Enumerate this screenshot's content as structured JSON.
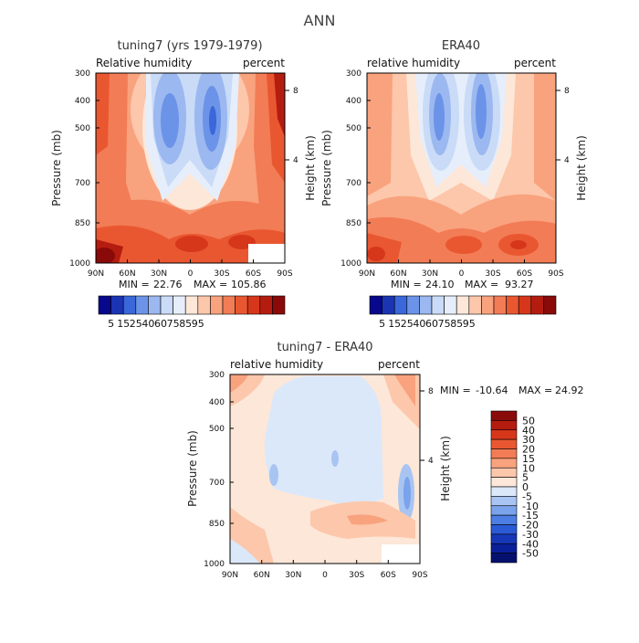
{
  "figure": {
    "title": "ANN"
  },
  "chart_data": [
    {
      "type": "heatmap",
      "name": "model",
      "title": "tuning7 (yrs 1979-1979)",
      "left_label": "Relative humidity",
      "right_label": "percent",
      "xlabel": "",
      "ylabel": "Pressure (mb)",
      "y2label": "Height (km)",
      "x_ticks": [
        "90N",
        "60N",
        "30N",
        "0",
        "30S",
        "60S",
        "90S"
      ],
      "y_ticks": [
        "300",
        "400",
        "500",
        "700",
        "850",
        "1000"
      ],
      "y2_ticks": [
        "8",
        "4"
      ],
      "stats": {
        "min_label": "MIN =",
        "min": "22.76",
        "max_label": "MAX =",
        "max": "105.86"
      },
      "colorbar_labels": [
        "5",
        "15",
        "25",
        "40",
        "60",
        "75",
        "85",
        "95"
      ],
      "colors": [
        "#08088c",
        "#1a34b4",
        "#3a67d9",
        "#6b93e8",
        "#9cb8f0",
        "#c9dbf7",
        "#e6eefb",
        "#fde7d8",
        "#fcc7ab",
        "#f9a27e",
        "#f27c55",
        "#e95731",
        "#d6371b",
        "#b51c10",
        "#8a0a0a"
      ]
    },
    {
      "type": "heatmap",
      "name": "obs",
      "title": "ERA40",
      "left_label": "relative humidity",
      "right_label": "percent",
      "xlabel": "",
      "ylabel": "Pressure (mb)",
      "y2label": "Height (km)",
      "x_ticks": [
        "90N",
        "60N",
        "30N",
        "0",
        "30S",
        "60S",
        "90S"
      ],
      "y_ticks": [
        "300",
        "400",
        "500",
        "700",
        "850",
        "1000"
      ],
      "y2_ticks": [
        "8",
        "4"
      ],
      "stats": {
        "min_label": "MIN =",
        "min": "24.10",
        "max_label": "MAX =",
        "max": "93.27"
      },
      "colorbar_labels": [
        "5",
        "15",
        "25",
        "40",
        "60",
        "75",
        "85",
        "95"
      ],
      "colors": [
        "#08088c",
        "#1a34b4",
        "#3a67d9",
        "#6b93e8",
        "#9cb8f0",
        "#c9dbf7",
        "#e6eefb",
        "#fde7d8",
        "#fcc7ab",
        "#f9a27e",
        "#f27c55",
        "#e95731",
        "#d6371b",
        "#b51c10",
        "#8a0a0a"
      ]
    },
    {
      "type": "heatmap",
      "name": "diff",
      "title": "tuning7 - ERA40",
      "left_label": "relative humidity",
      "right_label": "percent",
      "xlabel": "",
      "ylabel": "Pressure (mb)",
      "y2label": "Height (km)",
      "x_ticks": [
        "90N",
        "60N",
        "30N",
        "0",
        "30S",
        "60S",
        "90S"
      ],
      "y_ticks": [
        "300",
        "400",
        "500",
        "700",
        "850",
        "1000"
      ],
      "y2_ticks": [
        "8",
        "4"
      ],
      "stats": {
        "min_label": "MIN =",
        "min": "-10.64",
        "max_label": "MAX =",
        "max": "24.92"
      },
      "colorbar_labels": [
        "50",
        "40",
        "30",
        "20",
        "15",
        "10",
        "5",
        "0",
        "-5",
        "-10",
        "-15",
        "-20",
        "-30",
        "-40",
        "-50"
      ],
      "colors": [
        "#8a0a0a",
        "#b51c10",
        "#d6371b",
        "#e95731",
        "#f27c55",
        "#f9a27e",
        "#fcc7ab",
        "#fde7d8",
        "#dbe8fa",
        "#a8c4f2",
        "#7aa3ec",
        "#4c7ee3",
        "#2a5ad6",
        "#1638b8",
        "#0a1f9a",
        "#06106e"
      ]
    }
  ]
}
